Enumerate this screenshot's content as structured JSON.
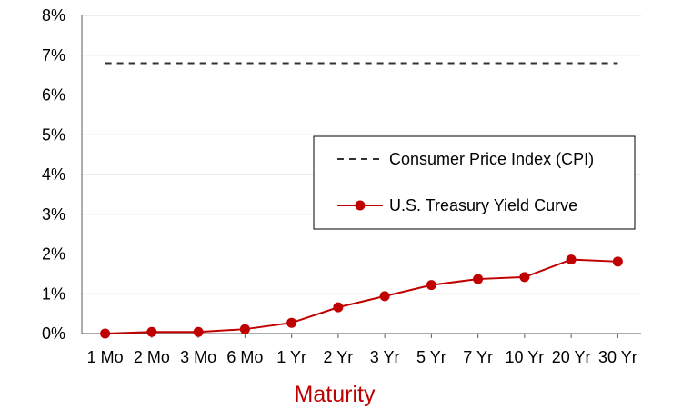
{
  "chart_data": {
    "type": "line",
    "categories": [
      "1 Mo",
      "2 Mo",
      "3 Mo",
      "6 Mo",
      "1 Yr",
      "2 Yr",
      "3 Yr",
      "5 Yr",
      "7 Yr",
      "10 Yr",
      "20 Yr",
      "30 Yr"
    ],
    "series": [
      {
        "name": "Consumer Price Index (CPI)",
        "values": [
          6.8,
          6.8,
          6.8,
          6.8,
          6.8,
          6.8,
          6.8,
          6.8,
          6.8,
          6.8,
          6.8,
          6.8
        ],
        "style": "dashed",
        "color": "#333333"
      },
      {
        "name": "U.S. Treasury Yield Curve",
        "values": [
          0.0,
          0.04,
          0.04,
          0.11,
          0.27,
          0.66,
          0.94,
          1.22,
          1.37,
          1.42,
          1.86,
          1.81
        ],
        "style": "solid-markers",
        "color": "#c00000"
      }
    ],
    "xlabel": "Maturity",
    "xlabel_color": "#c00000",
    "ylabel": "",
    "ylim": [
      0,
      8
    ],
    "yticks": [
      0,
      1,
      2,
      3,
      4,
      5,
      6,
      7,
      8
    ],
    "ytick_format": "percent",
    "grid": "horizontal",
    "legend_position": "center-right"
  }
}
